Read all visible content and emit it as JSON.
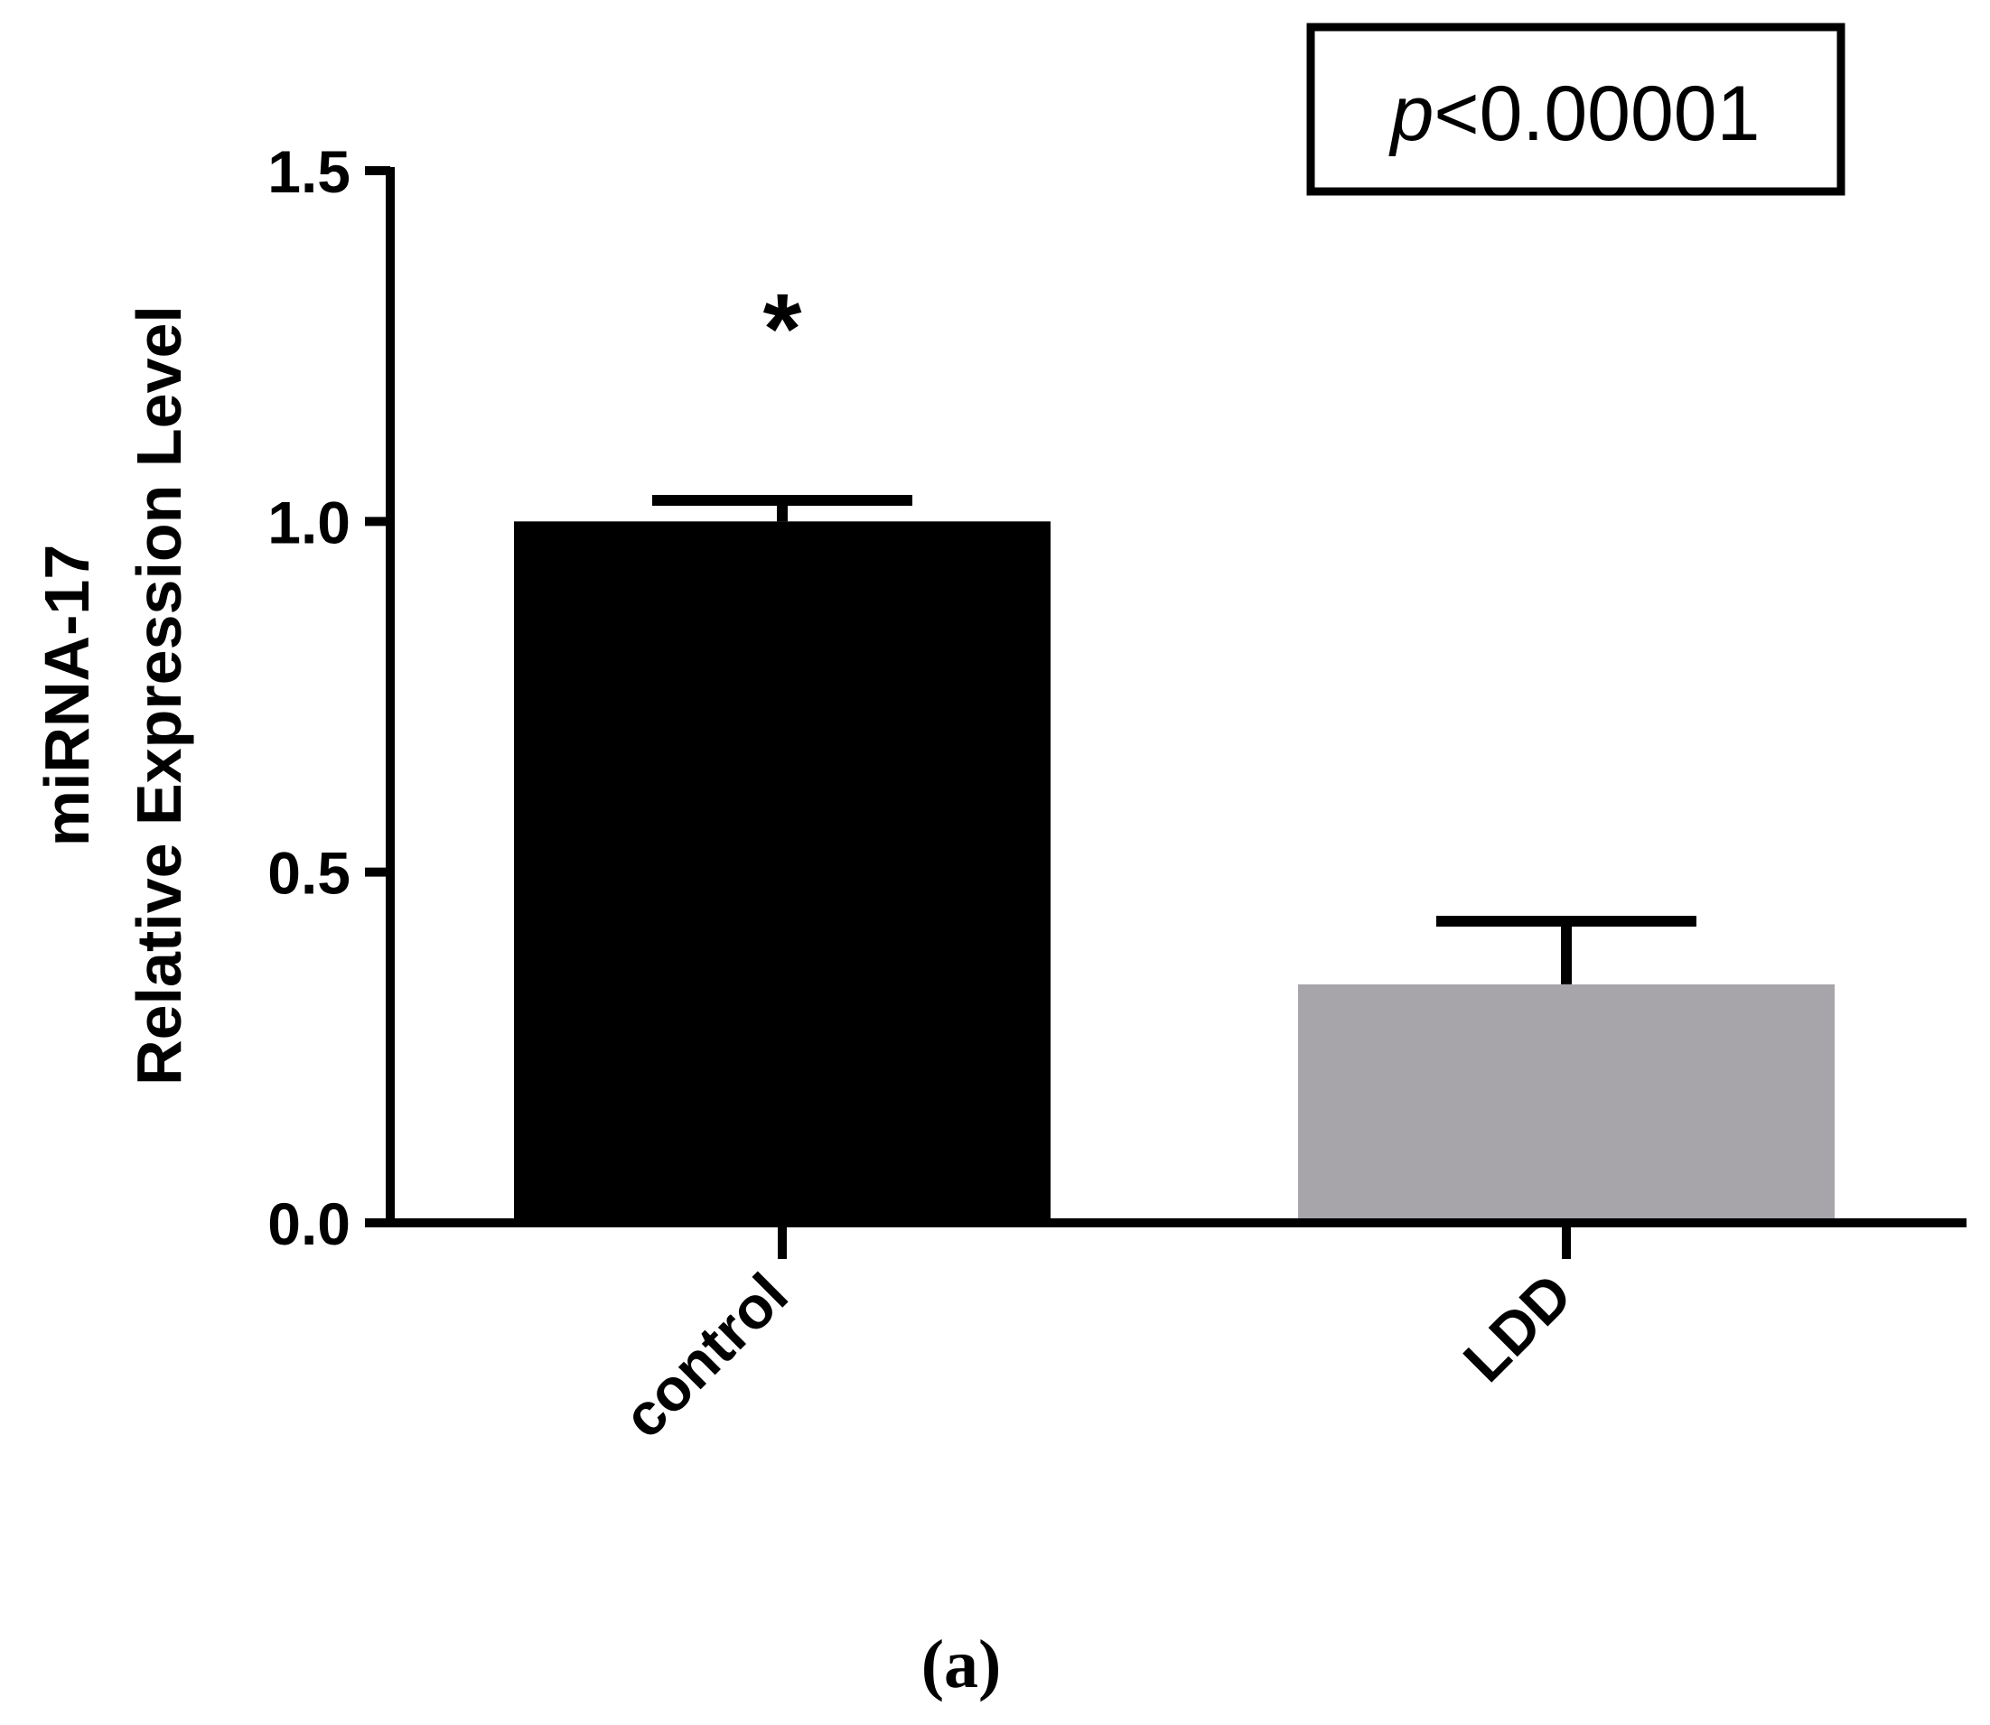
{
  "chart_data": {
    "type": "bar",
    "categories": [
      "control",
      "LDD"
    ],
    "values": [
      1.0,
      0.34
    ],
    "error_upper": [
      1.03,
      0.43
    ],
    "colors": [
      "#000000",
      "#a7a5aa"
    ],
    "ylabel_line1": "miRNA-17",
    "ylabel_line2": "Relative Expression Level",
    "ylim": [
      0,
      1.5
    ],
    "yticks": [
      "0.0",
      "0.5",
      "1.0",
      "1.5"
    ],
    "ytick_values": [
      0,
      0.5,
      1.0,
      1.5
    ],
    "annotation_star": "*",
    "p_value_prefix": "p",
    "p_value_rest": "<0.00001",
    "panel_label": "(a)"
  }
}
